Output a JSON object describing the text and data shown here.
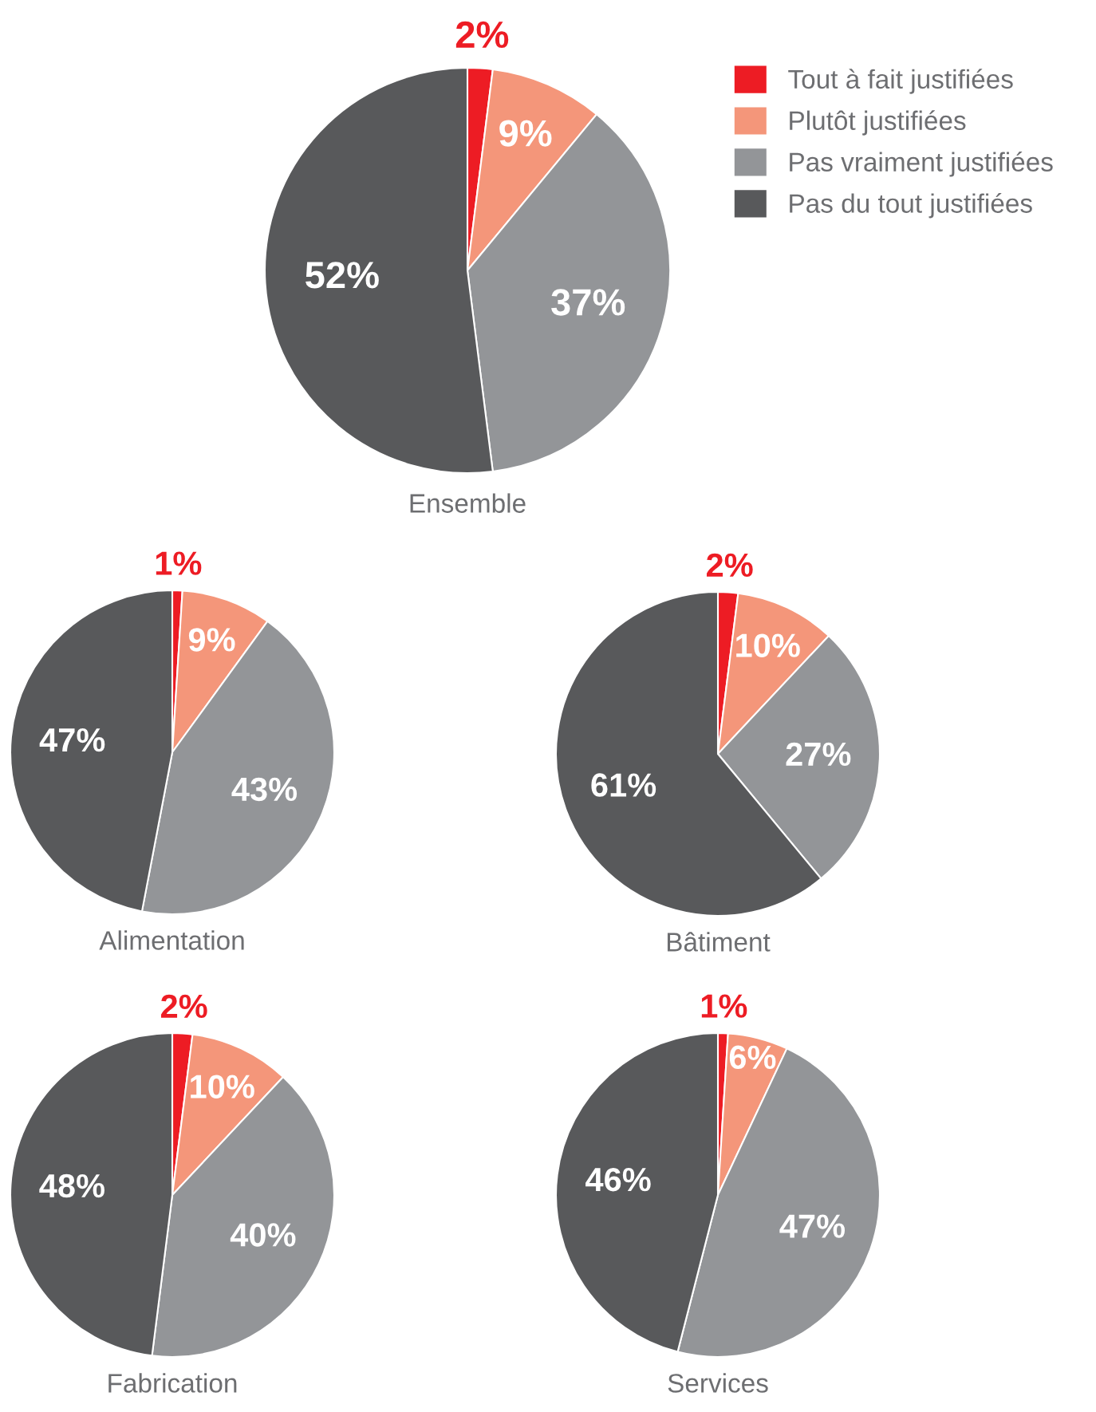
{
  "chart_data": [
    {
      "type": "pie",
      "title": "Ensemble",
      "categories": [
        "Tout à fait justifiées",
        "Plutôt justifiées",
        "Pas vraiment justifiées",
        "Pas du tout justifiées"
      ],
      "values": [
        2,
        9,
        37,
        52
      ],
      "colors": [
        "#ed1c24",
        "#f4967a",
        "#939598",
        "#58595b"
      ],
      "value_labels": [
        "2%",
        "9%",
        "37%",
        "52%"
      ],
      "legend": "right"
    },
    {
      "type": "pie",
      "title": "Alimentation",
      "categories": [
        null,
        null,
        null,
        null
      ],
      "values": [
        1,
        9,
        43,
        47
      ],
      "colors": [
        "#ed1c24",
        "#f4967a",
        "#939598",
        "#58595b"
      ],
      "value_labels": [
        "1%",
        "9%",
        "43%",
        "47%"
      ]
    },
    {
      "type": "pie",
      "title": "Bâtiment",
      "categories": [
        null,
        null,
        null,
        null
      ],
      "values": [
        2,
        10,
        27,
        61
      ],
      "colors": [
        "#ed1c24",
        "#f4967a",
        "#939598",
        "#58595b"
      ],
      "value_labels": [
        "2%",
        "10%",
        "27%",
        "61%"
      ]
    },
    {
      "type": "pie",
      "title": "Fabrication",
      "categories": [
        null,
        null,
        null,
        null
      ],
      "values": [
        2,
        10,
        40,
        48
      ],
      "colors": [
        "#ed1c24",
        "#f4967a",
        "#939598",
        "#58595b"
      ],
      "value_labels": [
        "2%",
        "10%",
        "40%",
        "48%"
      ]
    },
    {
      "type": "pie",
      "title": "Services",
      "categories": [
        null,
        null,
        null,
        null
      ],
      "values": [
        1,
        6,
        47,
        46
      ],
      "colors": [
        "#ed1c24",
        "#f4967a",
        "#939598",
        "#58595b"
      ],
      "value_labels": [
        "1%",
        "6%",
        "47%",
        "46%"
      ]
    }
  ]
}
